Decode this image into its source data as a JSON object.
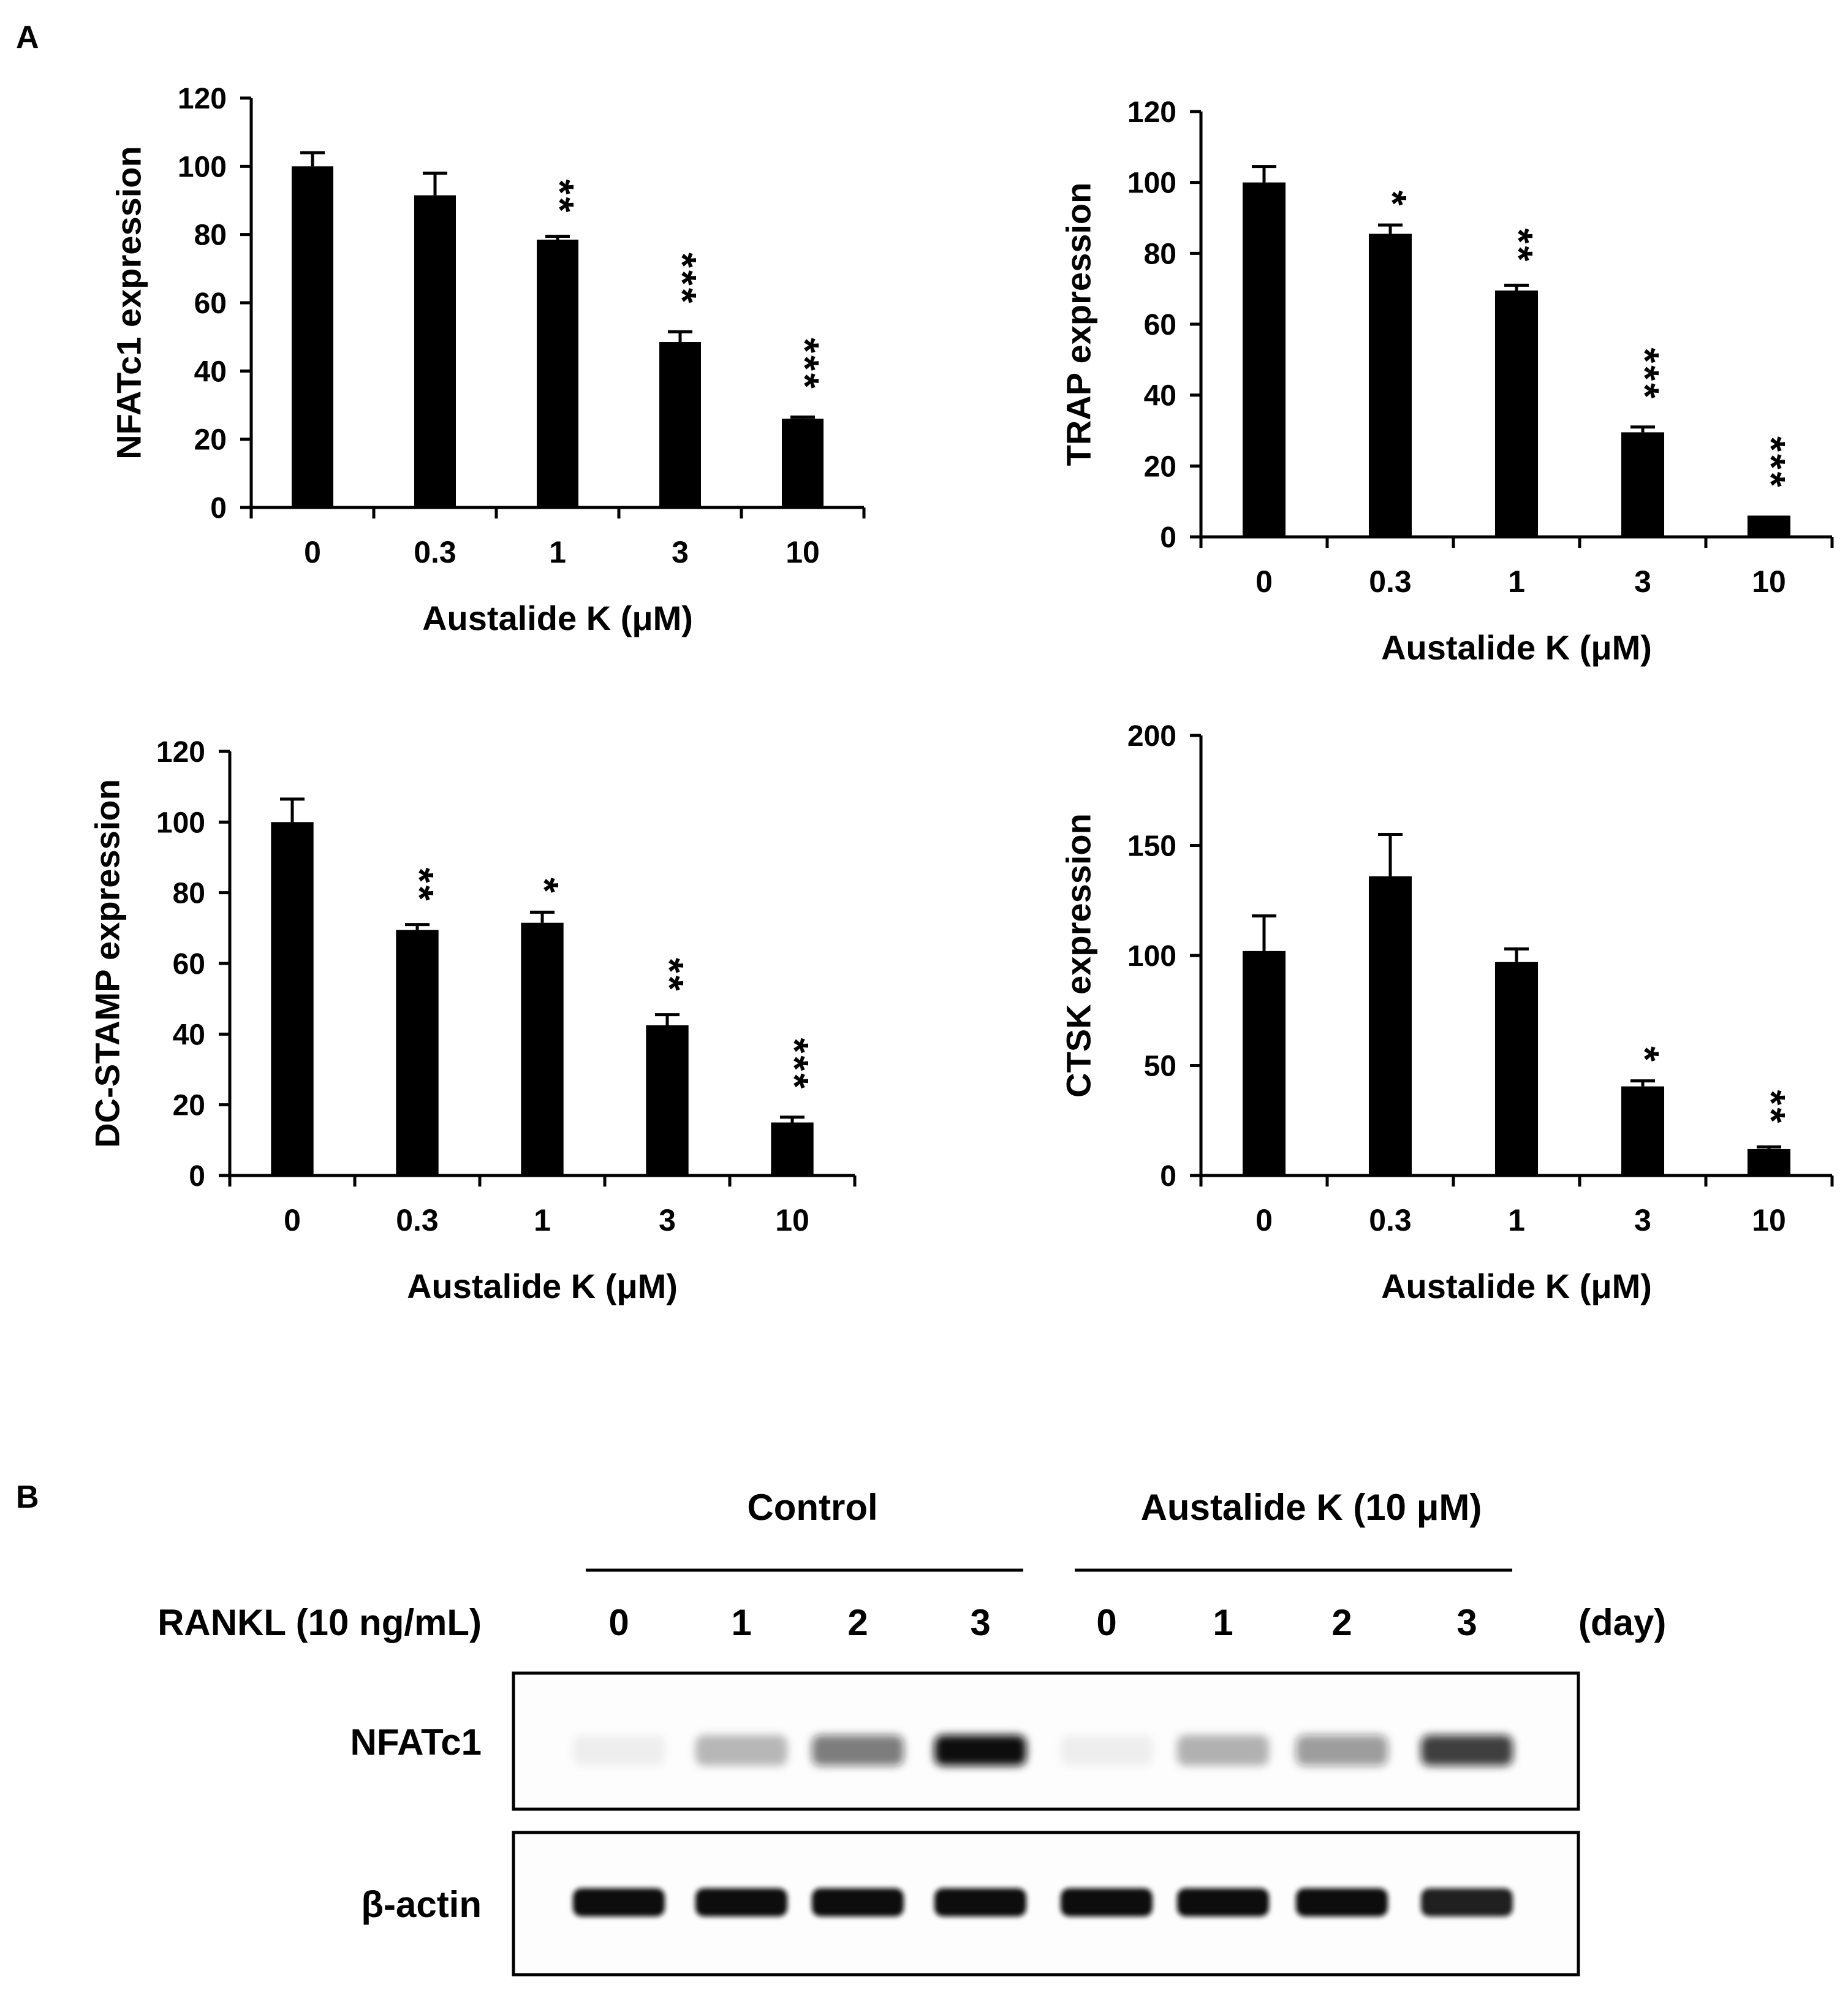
{
  "panel_labels": {
    "a": "A",
    "b": "B"
  },
  "colors": {
    "bar": "#000000",
    "axis": "#000000",
    "background": "#ffffff",
    "blot_band": "#111111"
  },
  "chart_data": [
    {
      "type": "bar",
      "ylabel": "NFATc1 expression",
      "xlabel": "Austalide K (μM)",
      "categories": [
        "0",
        "0.3",
        "1",
        "3",
        "10"
      ],
      "values": [
        100,
        91.5,
        78.5,
        48.5,
        26
      ],
      "errors": [
        4,
        6.5,
        1,
        3,
        0.5
      ],
      "significance": [
        "",
        "",
        "**",
        "***",
        "***"
      ],
      "ylim": [
        0,
        120
      ],
      "yticks": [
        0,
        20,
        40,
        60,
        80,
        100,
        120
      ],
      "grid": false
    },
    {
      "type": "bar",
      "ylabel": "TRAP expression",
      "xlabel": "Austalide K (μM)",
      "categories": [
        "0",
        "0.3",
        "1",
        "3",
        "10"
      ],
      "values": [
        100,
        85.5,
        69.5,
        29.5,
        6
      ],
      "errors": [
        4.5,
        2.5,
        1.5,
        1.5,
        0
      ],
      "significance": [
        "",
        "*",
        "**",
        "***",
        "***"
      ],
      "ylim": [
        0,
        120
      ],
      "yticks": [
        0,
        20,
        40,
        60,
        80,
        100,
        120
      ],
      "grid": false
    },
    {
      "type": "bar",
      "ylabel": "DC-STAMP expression",
      "xlabel": "Austalide K (μM)",
      "categories": [
        "0",
        "0.3",
        "1",
        "3",
        "10"
      ],
      "values": [
        100,
        69.5,
        71.5,
        42.5,
        15
      ],
      "errors": [
        6.5,
        1.5,
        3,
        3,
        1.5
      ],
      "significance": [
        "",
        "**",
        "*",
        "**",
        "***"
      ],
      "ylim": [
        0,
        120
      ],
      "yticks": [
        0,
        20,
        40,
        60,
        80,
        100,
        120
      ],
      "grid": false
    },
    {
      "type": "bar",
      "ylabel": "CTSK expression",
      "xlabel": "Austalide K (μM)",
      "categories": [
        "0",
        "0.3",
        "1",
        "3",
        "10"
      ],
      "values": [
        102,
        136,
        97,
        40.5,
        12
      ],
      "errors": [
        16,
        19,
        6,
        2.5,
        1
      ],
      "significance": [
        "",
        "",
        "",
        "*",
        "**"
      ],
      "ylim": [
        0,
        200
      ],
      "yticks": [
        0,
        50,
        100,
        150,
        200
      ],
      "grid": false
    }
  ],
  "blot": {
    "groups": [
      "Control",
      "Austalide K (10 μM)"
    ],
    "row_label": "RANKL (10 ng/mL)",
    "lanes": [
      "0",
      "1",
      "2",
      "3",
      "0",
      "1",
      "2",
      "3"
    ],
    "unit": "(day)",
    "rows": [
      {
        "label": "NFATc1",
        "intensity": [
          0.04,
          0.28,
          0.55,
          1.0,
          0.03,
          0.3,
          0.42,
          0.8
        ]
      },
      {
        "label": "β-actin",
        "intensity": [
          1.0,
          1.0,
          1.0,
          1.0,
          1.0,
          1.0,
          1.0,
          0.92
        ]
      }
    ]
  }
}
